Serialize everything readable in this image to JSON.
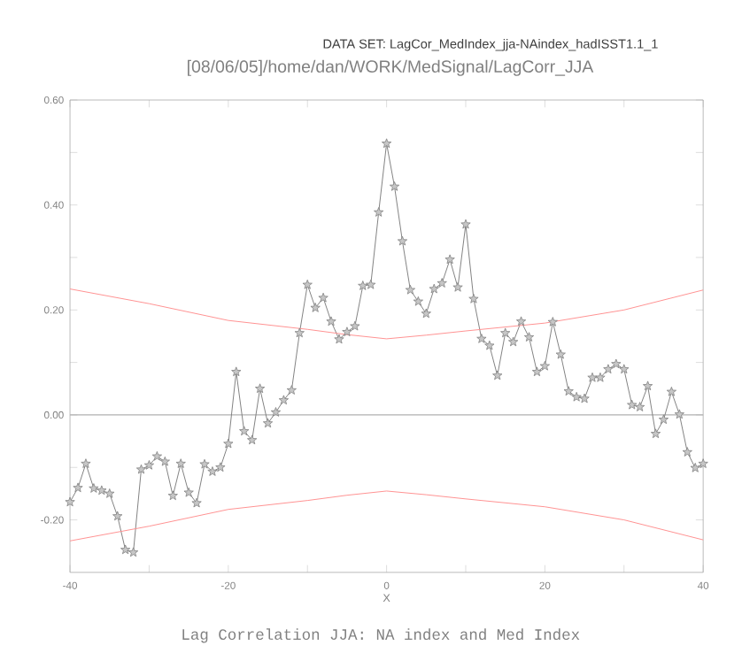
{
  "chart_data": {
    "type": "line",
    "title": "[08/06/05]/home/dan/WORK/MedSignal/LagCorr_JJA",
    "subtitle": "DATA SET: LagCor_MedIndex_jja-NAindex_hadISST1.1_1",
    "xlabel": "X",
    "annotations": [
      "Lag Correlation JJA: NA index and Med Index"
    ],
    "x": [
      -40,
      -39,
      -38,
      -37,
      -36,
      -35,
      -34,
      -33,
      -32,
      -31,
      -30,
      -29,
      -28,
      -27,
      -26,
      -25,
      -24,
      -23,
      -22,
      -21,
      -20,
      -19,
      -18,
      -17,
      -16,
      -15,
      -14,
      -13,
      -12,
      -11,
      -10,
      -9,
      -8,
      -7,
      -6,
      -5,
      -4,
      -3,
      -2,
      -1,
      0,
      1,
      2,
      3,
      4,
      5,
      6,
      7,
      8,
      9,
      10,
      11,
      12,
      13,
      14,
      15,
      16,
      17,
      18,
      19,
      20,
      21,
      22,
      23,
      24,
      25,
      26,
      27,
      28,
      29,
      30,
      31,
      32,
      33,
      34,
      35,
      36,
      37,
      38,
      39,
      40
    ],
    "series": [
      {
        "color": "#808080",
        "marker": "star",
        "values": [
          -0.166,
          -0.139,
          -0.093,
          -0.14,
          -0.144,
          -0.15,
          -0.193,
          -0.257,
          -0.262,
          -0.104,
          -0.096,
          -0.079,
          -0.089,
          -0.154,
          -0.093,
          -0.148,
          -0.168,
          -0.094,
          -0.108,
          -0.1,
          -0.055,
          0.082,
          -0.031,
          -0.048,
          0.05,
          -0.016,
          0.005,
          0.028,
          0.047,
          0.156,
          0.248,
          0.204,
          0.223,
          0.178,
          0.144,
          0.158,
          0.169,
          0.246,
          0.248,
          0.386,
          0.517,
          0.435,
          0.331,
          0.238,
          0.216,
          0.193,
          0.24,
          0.251,
          0.296,
          0.243,
          0.363,
          0.221,
          0.145,
          0.132,
          0.075,
          0.156,
          0.139,
          0.178,
          0.148,
          0.082,
          0.093,
          0.177,
          0.115,
          0.045,
          0.034,
          0.031,
          0.071,
          0.071,
          0.087,
          0.097,
          0.087,
          0.019,
          0.015,
          0.055,
          -0.036,
          -0.009,
          0.044,
          0.001,
          -0.071,
          -0.101,
          -0.093
        ]
      },
      {
        "color": "#ff9090",
        "marker": "none",
        "x": [
          -40,
          -30,
          -20,
          -10,
          -5,
          0,
          5,
          10,
          20,
          30,
          40
        ],
        "values": [
          0.24,
          0.212,
          0.18,
          0.163,
          0.153,
          0.145,
          0.152,
          0.16,
          0.175,
          0.2,
          0.238
        ]
      },
      {
        "color": "#ff9090",
        "marker": "none",
        "x": [
          -40,
          -30,
          -20,
          -10,
          -5,
          0,
          5,
          10,
          20,
          30,
          40
        ],
        "values": [
          -0.24,
          -0.212,
          -0.18,
          -0.163,
          -0.153,
          -0.145,
          -0.152,
          -0.16,
          -0.175,
          -0.2,
          -0.238
        ]
      }
    ],
    "ref_lines": [
      {
        "axis": "y",
        "value": 0,
        "color": "#b0b0b0"
      }
    ],
    "xlim": [
      -40,
      40
    ],
    "ylim": [
      -0.3,
      0.6
    ],
    "xticks": [
      -40,
      {
        "value": -30,
        "label": null
      },
      -20,
      {
        "value": -10,
        "label": null
      },
      0,
      {
        "value": 10,
        "label": null
      },
      20,
      {
        "value": 30,
        "label": null
      },
      40
    ],
    "yticks": [
      {
        "value": -0.2,
        "label": "-0.20"
      },
      {
        "value": -0.1,
        "label": null
      },
      {
        "value": 0,
        "label": "0.00"
      },
      {
        "value": 0.1,
        "label": null
      },
      {
        "value": 0.2,
        "label": "0.20"
      },
      {
        "value": 0.3,
        "label": null
      },
      {
        "value": 0.4,
        "label": "0.40"
      },
      {
        "value": 0.5,
        "label": null
      },
      {
        "value": 0.6,
        "label": "0.60"
      }
    ],
    "line_style": "solid"
  }
}
